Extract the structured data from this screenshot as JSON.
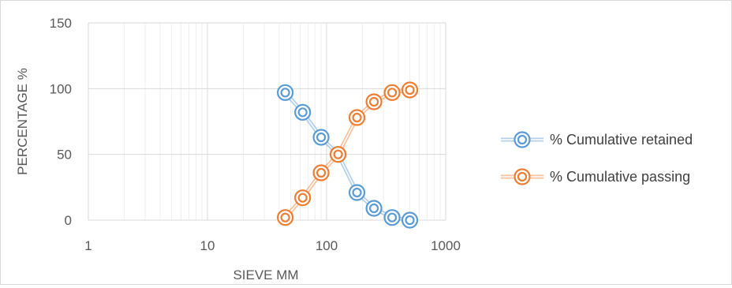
{
  "chart_data": {
    "type": "scatter",
    "title": "",
    "xlabel": "SIEVE MM",
    "ylabel": "PERCENTAGE %",
    "xscale": "log",
    "xlim": [
      1,
      1000
    ],
    "ylim": [
      0,
      150
    ],
    "x_ticks": [
      "1",
      "10",
      "100",
      "1000"
    ],
    "y_ticks": [
      "0",
      "50",
      "100",
      "150"
    ],
    "grid": true,
    "legend_position": "right",
    "series": [
      {
        "name": "% Cumulative retained",
        "color": "#5b9bd5",
        "x": [
          45,
          63,
          90,
          125,
          180,
          250,
          355,
          500
        ],
        "y": [
          97,
          82,
          63,
          50,
          21,
          9,
          2,
          0
        ]
      },
      {
        "name": "% Cumulative passing",
        "color": "#ed7d31",
        "x": [
          45,
          63,
          90,
          125,
          180,
          250,
          355,
          500
        ],
        "y": [
          2,
          17,
          36,
          50,
          78,
          90,
          97,
          99
        ]
      }
    ]
  }
}
